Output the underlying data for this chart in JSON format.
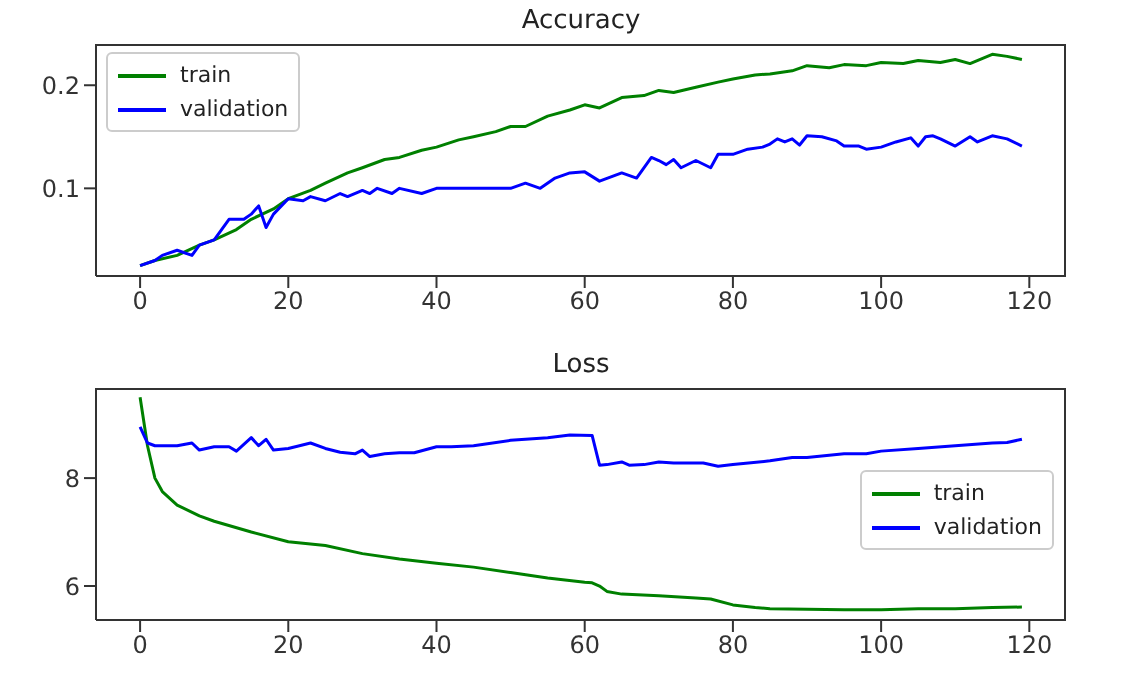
{
  "chart_data": [
    {
      "type": "line",
      "title": "Accuracy",
      "xlim": [
        -5.95,
        124.95
      ],
      "xticks": [
        0,
        20,
        40,
        60,
        80,
        100,
        120
      ],
      "ylim": [
        0.015,
        0.24
      ],
      "yticks": [
        0.1,
        0.2
      ],
      "grid": false,
      "legend": "top left",
      "line_style": "solid",
      "marker": "none",
      "series": [
        {
          "name": "train",
          "color": "#008000",
          "x": [
            0,
            2,
            5,
            8,
            10,
            13,
            15,
            18,
            20,
            23,
            25,
            28,
            30,
            33,
            35,
            38,
            40,
            43,
            45,
            48,
            50,
            52,
            55,
            58,
            60,
            62,
            65,
            68,
            70,
            72,
            75,
            78,
            80,
            83,
            85,
            88,
            90,
            93,
            95,
            98,
            100,
            103,
            105,
            108,
            110,
            112,
            115,
            117,
            119
          ],
          "values": [
            0.025,
            0.03,
            0.035,
            0.045,
            0.05,
            0.06,
            0.07,
            0.08,
            0.09,
            0.098,
            0.105,
            0.115,
            0.12,
            0.128,
            0.13,
            0.137,
            0.14,
            0.147,
            0.15,
            0.155,
            0.16,
            0.16,
            0.17,
            0.176,
            0.181,
            0.178,
            0.188,
            0.19,
            0.195,
            0.193,
            0.198,
            0.203,
            0.206,
            0.21,
            0.211,
            0.214,
            0.219,
            0.217,
            0.22,
            0.219,
            0.222,
            0.221,
            0.224,
            0.222,
            0.225,
            0.221,
            0.23,
            0.228,
            0.225
          ]
        },
        {
          "name": "validation",
          "color": "#0000ff",
          "x": [
            0,
            2,
            3,
            5,
            7,
            8,
            10,
            12,
            14,
            15,
            16,
            17,
            18,
            20,
            22,
            23,
            25,
            27,
            28,
            30,
            31,
            32,
            34,
            35,
            38,
            40,
            45,
            50,
            52,
            54,
            56,
            58,
            60,
            62,
            65,
            67,
            69,
            70,
            71,
            72,
            73,
            75,
            77,
            78,
            80,
            82,
            84,
            85,
            86,
            87,
            88,
            89,
            90,
            92,
            94,
            95,
            97,
            98,
            100,
            102,
            104,
            105,
            106,
            107,
            108,
            110,
            112,
            113,
            115,
            117,
            119
          ],
          "values": [
            0.025,
            0.03,
            0.035,
            0.04,
            0.035,
            0.045,
            0.05,
            0.07,
            0.07,
            0.075,
            0.083,
            0.062,
            0.075,
            0.09,
            0.088,
            0.092,
            0.088,
            0.095,
            0.092,
            0.098,
            0.095,
            0.1,
            0.095,
            0.1,
            0.095,
            0.1,
            0.1,
            0.1,
            0.105,
            0.1,
            0.11,
            0.115,
            0.116,
            0.107,
            0.115,
            0.11,
            0.13,
            0.127,
            0.123,
            0.128,
            0.12,
            0.127,
            0.12,
            0.133,
            0.133,
            0.138,
            0.14,
            0.143,
            0.148,
            0.145,
            0.148,
            0.142,
            0.151,
            0.15,
            0.146,
            0.141,
            0.141,
            0.138,
            0.14,
            0.145,
            0.149,
            0.141,
            0.15,
            0.151,
            0.148,
            0.141,
            0.15,
            0.145,
            0.151,
            0.148,
            0.141
          ]
        }
      ]
    },
    {
      "type": "line",
      "title": "Loss",
      "xlim": [
        -5.95,
        124.95
      ],
      "xticks": [
        0,
        20,
        40,
        60,
        80,
        100,
        120
      ],
      "ylim": [
        5.37,
        9.67
      ],
      "yticks": [
        6,
        8
      ],
      "grid": false,
      "legend": "right",
      "line_style": "solid",
      "marker": "none",
      "series": [
        {
          "name": "train",
          "color": "#008000",
          "x": [
            0,
            1,
            2,
            3,
            5,
            8,
            10,
            15,
            20,
            25,
            30,
            35,
            40,
            45,
            50,
            55,
            60,
            61,
            62,
            63,
            65,
            70,
            75,
            77,
            80,
            83,
            85,
            90,
            95,
            100,
            105,
            110,
            115,
            119
          ],
          "values": [
            9.5,
            8.6,
            8.0,
            7.75,
            7.5,
            7.3,
            7.2,
            7.0,
            6.82,
            6.75,
            6.6,
            6.5,
            6.42,
            6.35,
            6.25,
            6.15,
            6.07,
            6.06,
            6.0,
            5.9,
            5.85,
            5.82,
            5.78,
            5.76,
            5.65,
            5.6,
            5.58,
            5.57,
            5.56,
            5.56,
            5.58,
            5.58,
            5.6,
            5.61
          ]
        },
        {
          "name": "validation",
          "color": "#0000ff",
          "x": [
            0,
            1,
            2,
            5,
            7,
            8,
            10,
            12,
            13,
            15,
            16,
            17,
            18,
            20,
            23,
            25,
            27,
            29,
            30,
            31,
            33,
            35,
            37,
            40,
            42,
            45,
            50,
            55,
            58,
            61,
            62,
            63,
            65,
            66,
            68,
            70,
            72,
            76,
            78,
            80,
            85,
            88,
            90,
            95,
            98,
            100,
            105,
            110,
            115,
            117,
            119
          ],
          "values": [
            8.95,
            8.65,
            8.6,
            8.6,
            8.65,
            8.52,
            8.58,
            8.58,
            8.5,
            8.75,
            8.6,
            8.72,
            8.52,
            8.55,
            8.65,
            8.55,
            8.48,
            8.45,
            8.52,
            8.4,
            8.45,
            8.47,
            8.47,
            8.58,
            8.58,
            8.6,
            8.7,
            8.75,
            8.8,
            8.79,
            8.24,
            8.25,
            8.3,
            8.24,
            8.25,
            8.3,
            8.28,
            8.28,
            8.22,
            8.25,
            8.32,
            8.38,
            8.38,
            8.45,
            8.45,
            8.5,
            8.55,
            8.6,
            8.65,
            8.66,
            8.72
          ]
        }
      ]
    }
  ]
}
